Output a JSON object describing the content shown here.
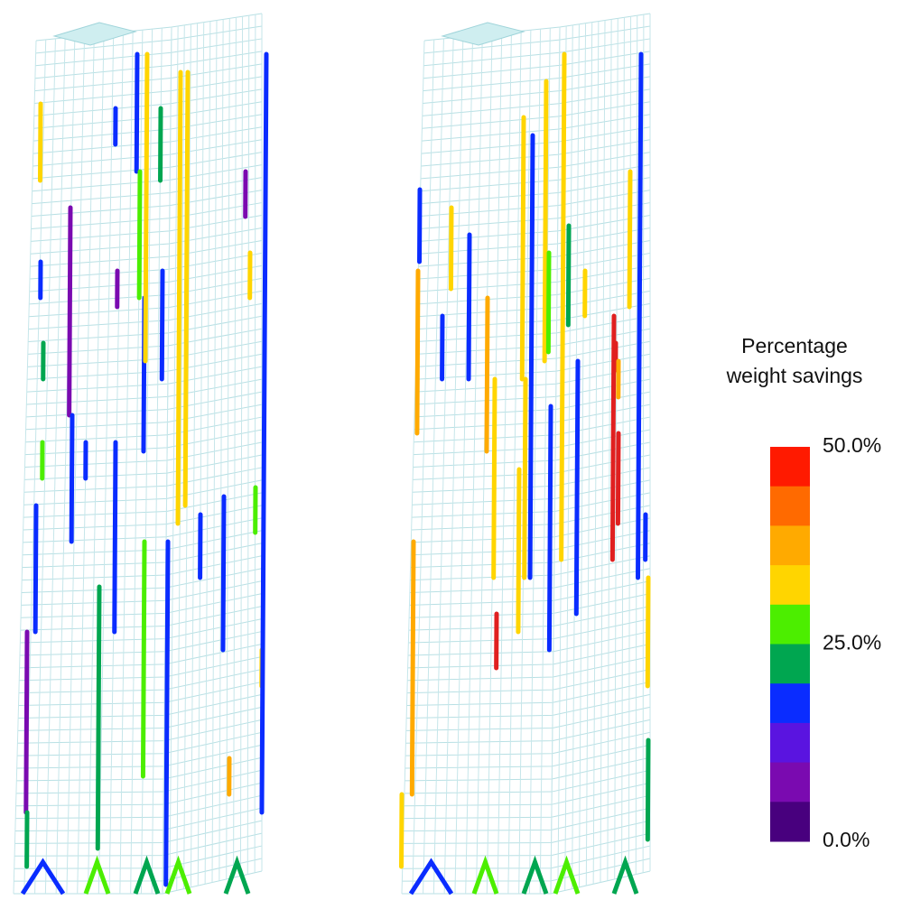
{
  "legend": {
    "title_lines": [
      "Percentage",
      "weight savings"
    ],
    "range": [
      0,
      50
    ],
    "colors": [
      "#ff1a00",
      "#ff6a00",
      "#ffaa00",
      "#ffd500",
      "#4cee00",
      "#00a650",
      "#0a2cff",
      "#5a14e0",
      "#7a0ab0",
      "#48007e"
    ],
    "ticks": [
      {
        "value": 50,
        "label": "50.0%"
      },
      {
        "value": 25,
        "label": "25.0%"
      },
      {
        "value": 0,
        "label": "0.0%"
      }
    ]
  }
}
